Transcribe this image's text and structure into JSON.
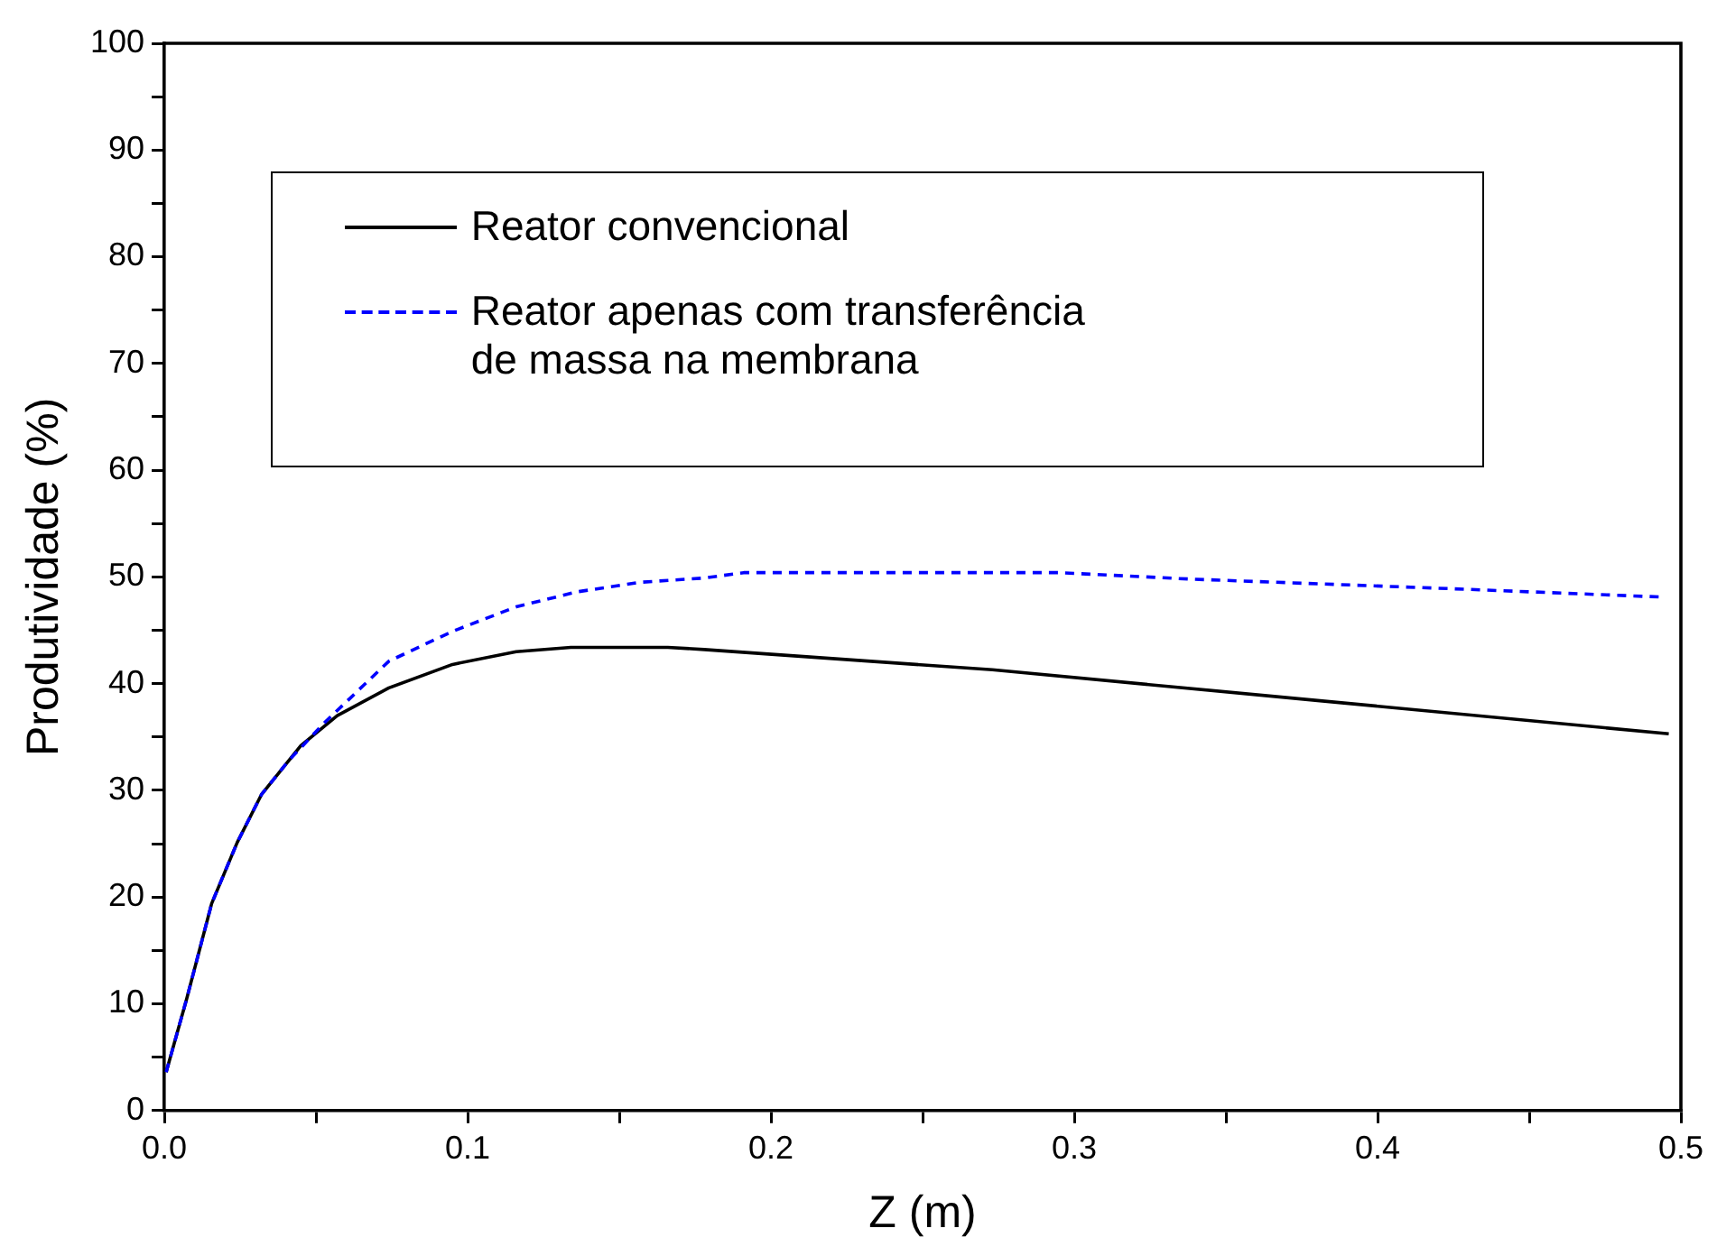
{
  "chart_data": {
    "type": "line",
    "xlabel": "Z (m)",
    "ylabel": "Produtividade (%)",
    "xlim": [
      0,
      0.5
    ],
    "ylim": [
      0,
      100
    ],
    "xticks": [
      {
        "value": 0,
        "label": "0.0"
      },
      {
        "value": 0.05,
        "label": null
      },
      0.1,
      {
        "value": 0.15,
        "label": null
      },
      0.2,
      {
        "value": 0.25,
        "label": null
      },
      0.3,
      {
        "value": 0.35,
        "label": null
      },
      0.4,
      {
        "value": 0.45,
        "label": null
      },
      0.5
    ],
    "yticks": [
      0,
      {
        "value": 5,
        "label": null
      },
      10,
      {
        "value": 15,
        "label": null
      },
      20,
      {
        "value": 25,
        "label": null
      },
      30,
      {
        "value": 35,
        "label": null
      },
      40,
      {
        "value": 45,
        "label": null
      },
      50,
      {
        "value": 55,
        "label": null
      },
      60,
      {
        "value": 65,
        "label": null
      },
      70,
      {
        "value": 75,
        "label": null
      },
      80,
      {
        "value": 85,
        "label": null
      },
      90,
      {
        "value": 95,
        "label": null
      },
      100
    ],
    "grid": false,
    "legend": "top",
    "marker": "none",
    "series": [
      {
        "name": "Reator convencional",
        "color": "#000000",
        "line_style": "solid",
        "x": [
          0.0006,
          0.0073,
          0.0156,
          0.024,
          0.032,
          0.045,
          0.057,
          0.074,
          0.095,
          0.116,
          0.134,
          0.166,
          0.178,
          0.273,
          0.381,
          0.496
        ],
        "values": [
          3.6,
          10.4,
          19.4,
          25.1,
          29.6,
          34.2,
          37.0,
          39.6,
          41.8,
          43.0,
          43.4,
          43.4,
          43.2,
          41.3,
          38.4,
          35.3
        ]
      },
      {
        "name": "Reator apenas com transferência de massa na membrana",
        "color": "#0000ff",
        "line_style": "dashed",
        "x": [
          0.0006,
          0.0073,
          0.0156,
          0.024,
          0.032,
          0.041,
          0.053,
          0.074,
          0.095,
          0.116,
          0.136,
          0.157,
          0.178,
          0.191,
          0.295,
          0.338,
          0.424,
          0.495
        ],
        "values": [
          3.6,
          10.4,
          19.4,
          25.1,
          29.6,
          32.8,
          36.4,
          42.1,
          44.9,
          47.2,
          48.6,
          49.5,
          49.9,
          50.4,
          50.4,
          49.8,
          48.9,
          48.1
        ]
      }
    ]
  }
}
